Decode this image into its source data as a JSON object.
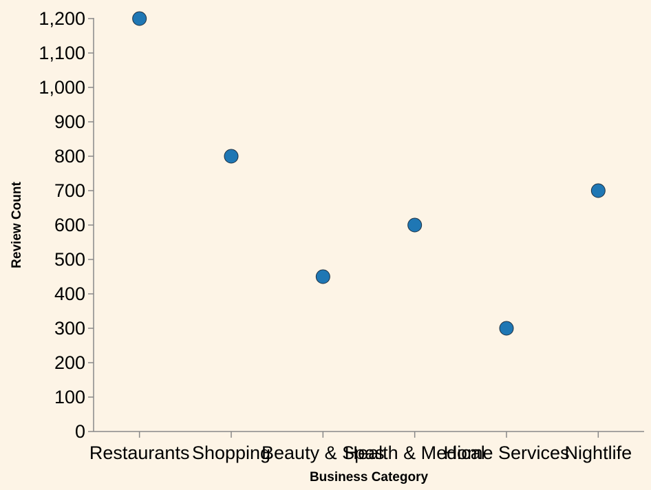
{
  "chart_data": {
    "type": "scatter",
    "title": "",
    "xlabel": "Business Category",
    "ylabel": "Review Count",
    "categories": [
      "Restaurants",
      "Shopping",
      "Beauty & Spas",
      "Health & Medical",
      "Home Services",
      "Nightlife"
    ],
    "values": [
      1200,
      800,
      450,
      600,
      300,
      700
    ],
    "ylim": [
      0,
      1200
    ],
    "yticks": [
      0,
      100,
      200,
      300,
      400,
      500,
      600,
      700,
      800,
      900,
      1000,
      1100,
      1200
    ],
    "ytick_labels": [
      "0",
      "100",
      "200",
      "300",
      "400",
      "500",
      "600",
      "700",
      "800",
      "900",
      "1,000",
      "1,100",
      "1,200"
    ],
    "grid": false,
    "legend": "none",
    "colors": {
      "background": "#fdf4e6",
      "point": "#1f77b4"
    }
  }
}
